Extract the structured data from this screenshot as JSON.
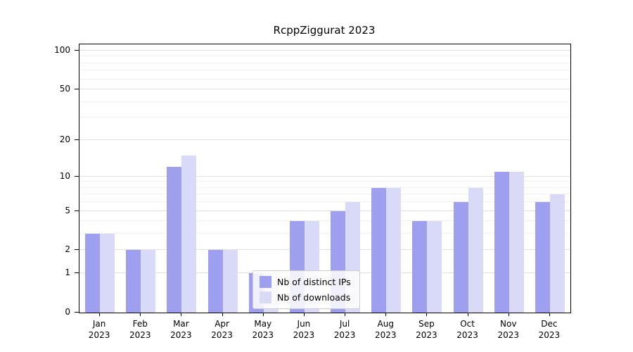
{
  "chart_data": {
    "type": "bar",
    "title": "RcppZiggurat 2023",
    "categories": [
      "Jan",
      "Feb",
      "Mar",
      "Apr",
      "May",
      "Jun",
      "Jul",
      "Aug",
      "Sep",
      "Oct",
      "Nov",
      "Dec"
    ],
    "category_year": "2023",
    "series": [
      {
        "name": "Nb of distinct IPs",
        "color": "#9f9ff0",
        "values": [
          3,
          2,
          12,
          2,
          1,
          4,
          5,
          8,
          4,
          6,
          11,
          6
        ]
      },
      {
        "name": "Nb of downloads",
        "color": "#d9d9f8",
        "values": [
          3,
          2,
          15,
          2,
          1,
          4,
          6,
          8,
          4,
          8,
          11,
          7
        ]
      }
    ],
    "y_axis": {
      "scale": "log1p",
      "ticks": [
        0,
        1,
        2,
        5,
        10,
        20,
        50,
        100
      ],
      "minor_gridlines": [
        3,
        4,
        6,
        7,
        8,
        9,
        30,
        40,
        60,
        70,
        80,
        90
      ],
      "top_value": 112,
      "major_grid_color": "#e0e0e0",
      "minor_grid_color": "#efefef"
    },
    "legend_position": "bottom-center",
    "grid": "horizontal",
    "ylim": [
      0,
      112
    ]
  }
}
